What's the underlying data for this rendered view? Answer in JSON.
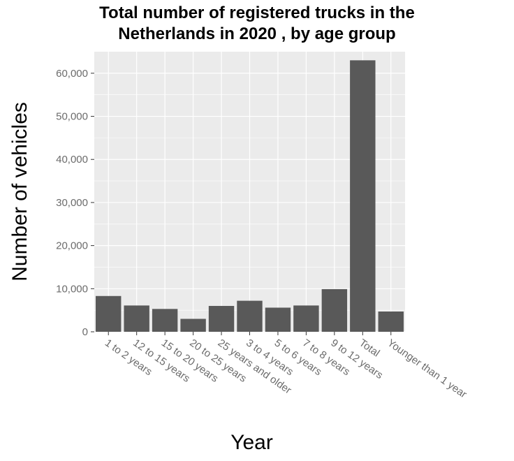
{
  "chart_data": {
    "type": "bar",
    "title_lines": [
      "Total number of registered trucks in the",
      "Netherlands in 2020 , by age group"
    ],
    "xlabel": "Year",
    "ylabel": "Number of vehicles",
    "categories": [
      "1 to 2 years",
      "12 to 15 years",
      "15 to 20 years",
      "20 to 25 years",
      "25 years and older",
      "3 to 4 years",
      "5 to 6 years",
      "7 to 8 years",
      "9 to 12 years",
      "Total",
      "Younger than 1 year"
    ],
    "values": [
      8300,
      6100,
      5300,
      3000,
      6000,
      7200,
      5600,
      6100,
      9900,
      63000,
      4700
    ],
    "ylim": [
      0,
      65000
    ],
    "yticks": [
      0,
      10000,
      20000,
      30000,
      40000,
      50000,
      60000
    ],
    "ytick_labels": [
      "0",
      "10,000",
      "20,000",
      "30,000",
      "40,000",
      "50,000",
      "60,000"
    ],
    "grid": true,
    "colors": {
      "bar": "#595959",
      "panel": "#ebebeb",
      "grid": "#ffffff"
    }
  }
}
